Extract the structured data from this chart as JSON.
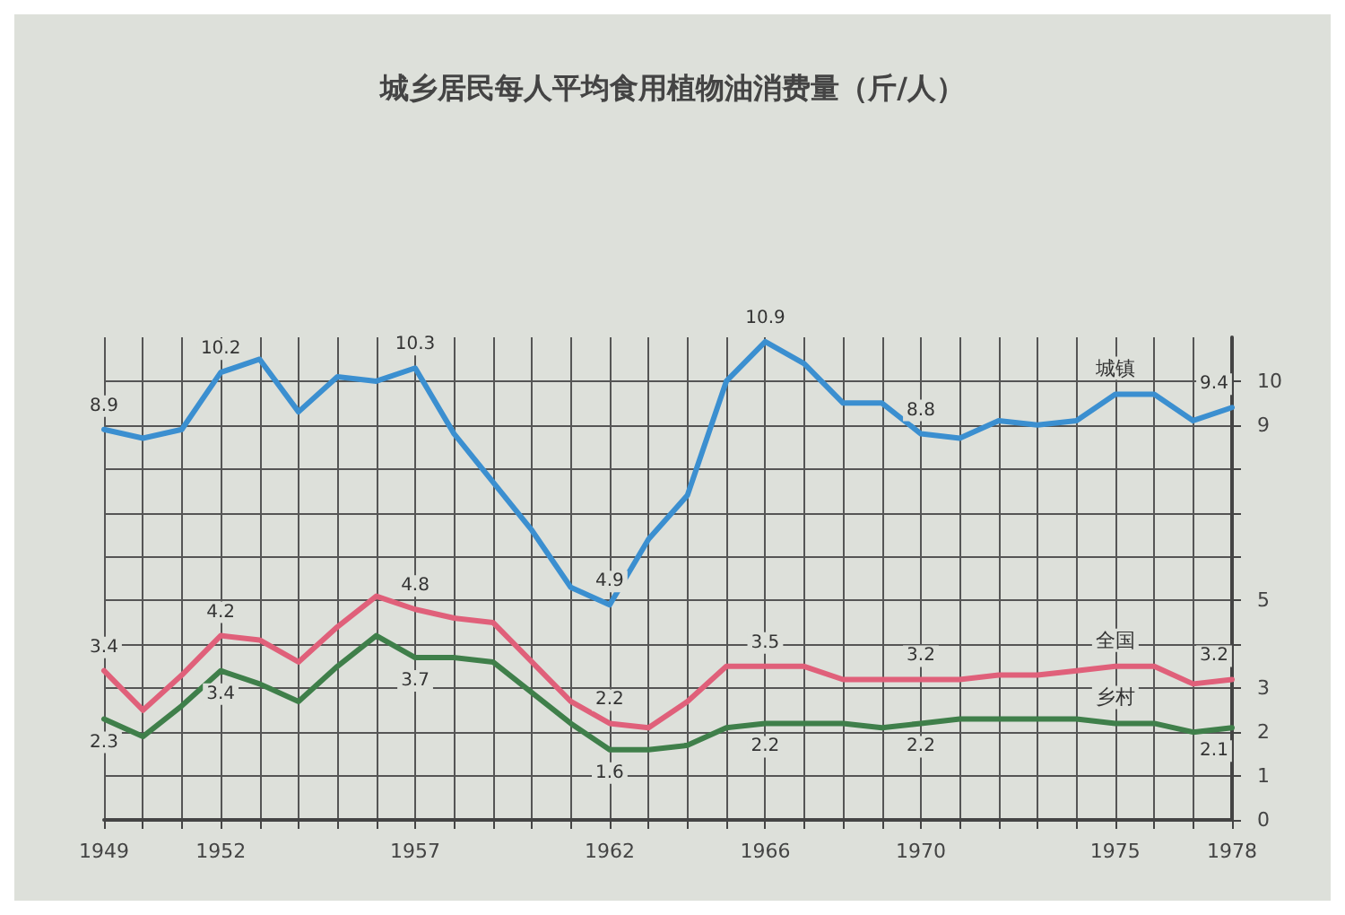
{
  "chart_data": {
    "type": "line",
    "title": "城乡居民每人平均食用植物油消费量（斤/人）",
    "x": [
      1949,
      1950,
      1951,
      1952,
      1953,
      1954,
      1955,
      1956,
      1957,
      1958,
      1959,
      1960,
      1961,
      1962,
      1963,
      1964,
      1965,
      1966,
      1967,
      1968,
      1969,
      1970,
      1971,
      1972,
      1973,
      1974,
      1975,
      1976,
      1977,
      1978
    ],
    "series": [
      {
        "name": "城镇",
        "color": "#3b8fd0",
        "values": [
          8.9,
          8.7,
          8.9,
          10.2,
          10.5,
          9.3,
          10.1,
          10.0,
          10.3,
          8.8,
          7.7,
          6.6,
          5.3,
          4.9,
          6.4,
          7.4,
          10.0,
          10.9,
          10.4,
          9.5,
          9.5,
          8.8,
          8.7,
          9.1,
          9.0,
          9.1,
          9.7,
          9.7,
          9.1,
          9.4
        ],
        "value_labels": [
          "8.9",
          null,
          null,
          "10.2",
          null,
          null,
          null,
          null,
          "10.3",
          null,
          null,
          null,
          null,
          "4.9",
          null,
          null,
          null,
          "10.9",
          null,
          null,
          null,
          "8.8",
          null,
          null,
          null,
          null,
          null,
          null,
          null,
          "9.4"
        ]
      },
      {
        "name": "全国",
        "color": "#e0607a",
        "values": [
          3.4,
          2.5,
          3.3,
          4.2,
          4.1,
          3.6,
          4.4,
          5.1,
          4.8,
          4.6,
          4.5,
          3.6,
          2.7,
          2.2,
          2.1,
          2.7,
          3.5,
          3.5,
          3.5,
          3.2,
          3.2,
          3.2,
          3.2,
          3.3,
          3.3,
          3.4,
          3.5,
          3.5,
          3.1,
          3.2
        ],
        "value_labels": [
          "3.4",
          null,
          null,
          "4.2",
          null,
          null,
          null,
          null,
          "4.8",
          null,
          null,
          null,
          null,
          "2.2",
          null,
          null,
          null,
          "3.5",
          null,
          null,
          null,
          "3.2",
          null,
          null,
          null,
          null,
          null,
          null,
          null,
          "3.2"
        ]
      },
      {
        "name": "乡村",
        "color": "#3f7f4a",
        "values": [
          2.3,
          1.9,
          2.6,
          3.4,
          3.1,
          2.7,
          3.5,
          4.2,
          3.7,
          3.7,
          3.6,
          2.9,
          2.2,
          1.6,
          1.6,
          1.7,
          2.1,
          2.2,
          2.2,
          2.2,
          2.1,
          2.2,
          2.3,
          2.3,
          2.3,
          2.3,
          2.2,
          2.2,
          2.0,
          2.1
        ],
        "value_labels": [
          "2.3",
          null,
          null,
          "3.4",
          null,
          null,
          null,
          null,
          "3.7",
          null,
          null,
          null,
          null,
          "1.6",
          null,
          null,
          null,
          "2.2",
          null,
          null,
          null,
          "2.2",
          null,
          null,
          null,
          null,
          null,
          null,
          null,
          "2.1"
        ]
      }
    ],
    "xlim": [
      1949,
      1978
    ],
    "xticks": [
      1949,
      {
        "value": 1950,
        "label": null
      },
      {
        "value": 1951,
        "label": null
      },
      1952,
      {
        "value": 1953,
        "label": null
      },
      {
        "value": 1954,
        "label": null
      },
      {
        "value": 1955,
        "label": null
      },
      {
        "value": 1956,
        "label": null
      },
      1957,
      {
        "value": 1958,
        "label": null
      },
      {
        "value": 1959,
        "label": null
      },
      {
        "value": 1960,
        "label": null
      },
      {
        "value": 1961,
        "label": null
      },
      1962,
      {
        "value": 1963,
        "label": null
      },
      {
        "value": 1964,
        "label": null
      },
      {
        "value": 1965,
        "label": null
      },
      1966,
      {
        "value": 1967,
        "label": null
      },
      {
        "value": 1968,
        "label": null
      },
      {
        "value": 1969,
        "label": null
      },
      1970,
      {
        "value": 1971,
        "label": null
      },
      {
        "value": 1972,
        "label": null
      },
      {
        "value": 1973,
        "label": null
      },
      {
        "value": 1974,
        "label": null
      },
      1975,
      {
        "value": 1976,
        "label": null
      },
      {
        "value": 1977,
        "label": null
      },
      1978
    ],
    "ylim": [
      0,
      11
    ],
    "yticks": [
      0,
      1,
      2,
      3,
      {
        "value": 4,
        "label": null
      },
      5,
      {
        "value": 6,
        "label": null
      },
      {
        "value": 7,
        "label": null
      },
      {
        "value": 8,
        "label": null
      },
      9,
      10
    ],
    "grid": true,
    "legend": false,
    "marker": "none",
    "line_style": "solid"
  }
}
